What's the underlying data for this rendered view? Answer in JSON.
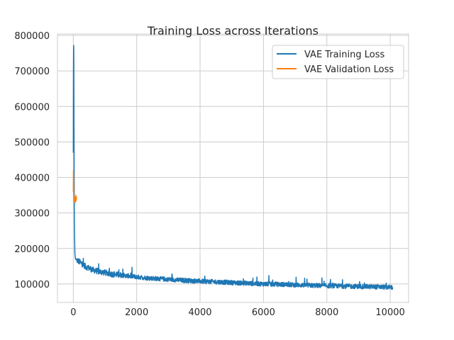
{
  "chart_data": {
    "type": "line",
    "title": "Training Loss across Iterations",
    "xlabel": "",
    "ylabel": "",
    "xlim": [
      -500,
      10580
    ],
    "ylim": [
      48000,
      804000
    ],
    "xticks": [
      0,
      2000,
      4000,
      6000,
      8000,
      10000
    ],
    "yticks": [
      100000,
      200000,
      300000,
      400000,
      500000,
      600000,
      700000,
      800000
    ],
    "grid": true,
    "legend_position": "top-right",
    "series": [
      {
        "name": "VAE Training Loss",
        "color": "#1f77b4",
        "x": [
          0,
          5,
          10,
          15,
          20,
          30,
          40,
          50,
          70,
          100,
          150,
          200,
          300,
          400,
          500,
          600,
          800,
          1000,
          1200,
          1500,
          1800,
          2000,
          2200,
          2500,
          3000,
          3500,
          4000,
          4500,
          5000,
          5500,
          6000,
          6500,
          7000,
          7500,
          8000,
          8500,
          9000,
          9500,
          10000,
          10080
        ],
        "y": [
          470000,
          700000,
          772000,
          760000,
          600000,
          320000,
          240000,
          185000,
          170000,
          168000,
          165000,
          162000,
          155000,
          148000,
          145000,
          140000,
          135000,
          132000,
          128000,
          125000,
          122000,
          120000,
          118000,
          116000,
          113000,
          110000,
          108000,
          106000,
          104000,
          102000,
          100000,
          99000,
          97500,
          96000,
          95000,
          94000,
          93000,
          92000,
          91000,
          90500
        ],
        "noise": 13000
      },
      {
        "name": "VAE Validation Loss",
        "color": "#ff7f0e",
        "x": [
          0,
          5,
          10,
          15,
          20,
          30,
          40,
          50,
          60,
          70,
          80,
          90,
          100
        ],
        "y": [
          360000,
          420000,
          385000,
          345000,
          330000,
          335000,
          340000,
          345000,
          338000,
          330000,
          350000,
          335000,
          345000
        ],
        "noise": 0
      }
    ]
  }
}
